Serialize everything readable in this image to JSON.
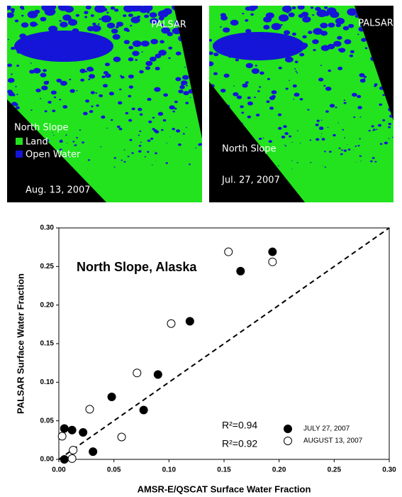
{
  "images": [
    {
      "sensor": "PALSAR",
      "legend_title": "North Slope",
      "legend": [
        "Land",
        "Open Water"
      ],
      "date": "Aug. 13, 2007"
    },
    {
      "sensor": "PALSAR",
      "region": "North Slope",
      "date": "Jul. 27, 2007"
    }
  ],
  "chart_data": {
    "type": "scatter",
    "title": "North Slope,  Alaska",
    "x_label": "AMSR-E/QSCAT Surface Water Fraction",
    "y_label": "PALSAR Surface Water Fraction",
    "xlim": [
      0,
      0.3
    ],
    "ylim": [
      0,
      0.3
    ],
    "xticks": [
      {
        "value": 0,
        "label": "0.00"
      },
      {
        "value": 0.05,
        "label": "0.05"
      },
      {
        "value": 0.1,
        "label": "0.10"
      },
      {
        "value": 0.15,
        "label": "0.15"
      },
      {
        "value": 0.2,
        "label": "0.20"
      },
      {
        "value": 0.25,
        "label": "0.25"
      },
      {
        "value": 0.3,
        "label": "0.30"
      }
    ],
    "yticks": [
      {
        "value": 0,
        "label": "0.00"
      },
      {
        "value": 0.05,
        "label": "0.05"
      },
      {
        "value": 0.1,
        "label": "0.10"
      },
      {
        "value": 0.15,
        "label": "0.15"
      },
      {
        "value": 0.2,
        "label": "0.20"
      },
      {
        "value": 0.25,
        "label": "0.25"
      },
      {
        "value": 0.3,
        "label": "0.30"
      }
    ],
    "annotations": [
      "R²=0.94",
      "R²=0.92"
    ],
    "series": [
      {
        "name": "JULY 27, 2007",
        "color": "#000000",
        "marker": "filled",
        "x": [
          0.005,
          0.005,
          0.012,
          0.022,
          0.031,
          0.048,
          0.077,
          0.09,
          0.119,
          0.165,
          0.194
        ],
        "values": [
          0.04,
          0.0,
          0.038,
          0.035,
          0.01,
          0.081,
          0.064,
          0.11,
          0.179,
          0.244,
          0.269
        ]
      },
      {
        "name": "AUGUST 13, 2007",
        "color": "#000000",
        "marker": "open",
        "x": [
          0.003,
          0.013,
          0.012,
          0.028,
          0.057,
          0.071,
          0.102,
          0.154,
          0.194
        ],
        "values": [
          0.03,
          0.012,
          0.001,
          0.065,
          0.029,
          0.112,
          0.176,
          0.269,
          0.256
        ]
      }
    ]
  }
}
